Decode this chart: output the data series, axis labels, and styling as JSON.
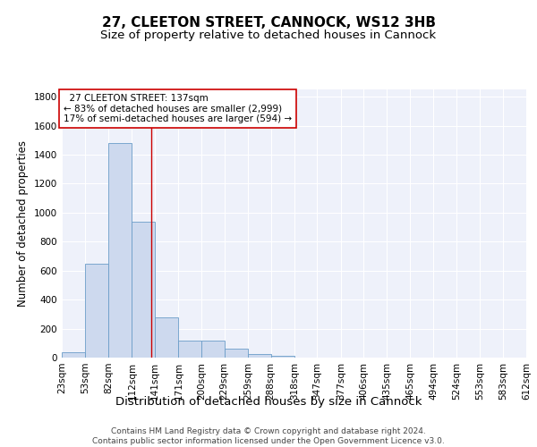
{
  "title": "27, CLEETON STREET, CANNOCK, WS12 3HB",
  "subtitle": "Size of property relative to detached houses in Cannock",
  "xlabel": "Distribution of detached houses by size in Cannock",
  "ylabel": "Number of detached properties",
  "bar_color": "#cdd9ee",
  "bar_edge_color": "#6b9dc8",
  "background_color": "#eef1fa",
  "grid_color": "#ffffff",
  "bin_edges": [
    23,
    53,
    82,
    112,
    141,
    171,
    200,
    229,
    259,
    288,
    318,
    347,
    377,
    406,
    435,
    465,
    494,
    524,
    553,
    583,
    612
  ],
  "bin_labels": [
    "23sqm",
    "53sqm",
    "82sqm",
    "112sqm",
    "141sqm",
    "171sqm",
    "200sqm",
    "229sqm",
    "259sqm",
    "288sqm",
    "318sqm",
    "347sqm",
    "377sqm",
    "406sqm",
    "435sqm",
    "465sqm",
    "494sqm",
    "524sqm",
    "553sqm",
    "583sqm",
    "612sqm"
  ],
  "values": [
    35,
    650,
    1480,
    940,
    280,
    120,
    120,
    60,
    25,
    15,
    0,
    0,
    0,
    0,
    0,
    0,
    0,
    0,
    0,
    0
  ],
  "ylim": [
    0,
    1850
  ],
  "yticks": [
    0,
    200,
    400,
    600,
    800,
    1000,
    1200,
    1400,
    1600,
    1800
  ],
  "vline_x": 137,
  "vline_color": "#cc0000",
  "annotation_line1": "  27 CLEETON STREET: 137sqm",
  "annotation_line2": "← 83% of detached houses are smaller (2,999)",
  "annotation_line3": "17% of semi-detached houses are larger (594) →",
  "annotation_box_color": "#ffffff",
  "annotation_box_edge": "#cc0000",
  "footer": "Contains HM Land Registry data © Crown copyright and database right 2024.\nContains public sector information licensed under the Open Government Licence v3.0.",
  "title_fontsize": 11,
  "subtitle_fontsize": 9.5,
  "ylabel_fontsize": 8.5,
  "xlabel_fontsize": 9.5,
  "tick_fontsize": 7.5,
  "annotation_fontsize": 7.5,
  "footer_fontsize": 6.5
}
